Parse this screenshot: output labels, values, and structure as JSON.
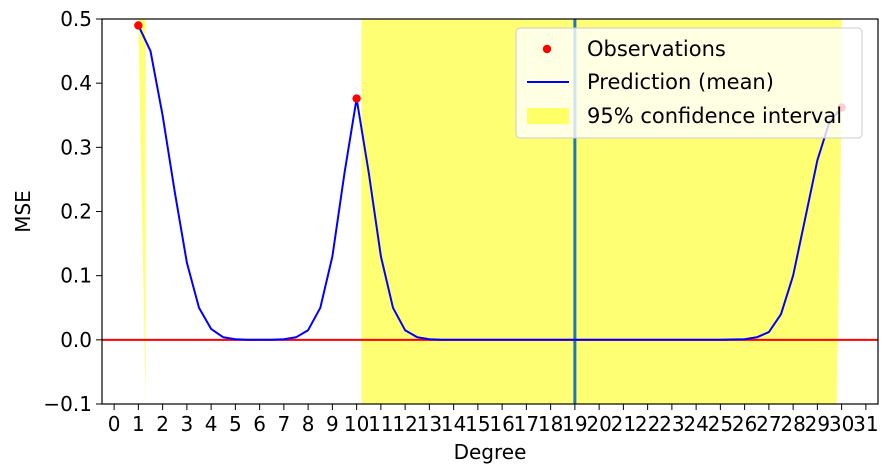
{
  "chart_data": {
    "type": "line",
    "xlabel": "Degree",
    "ylabel": "MSE",
    "xlim": [
      -0.5,
      31.5
    ],
    "ylim": [
      -0.1,
      0.5
    ],
    "x_ticks": [
      0,
      1,
      2,
      3,
      4,
      5,
      6,
      7,
      8,
      9,
      10,
      11,
      12,
      13,
      14,
      15,
      16,
      17,
      18,
      19,
      20,
      21,
      22,
      23,
      24,
      25,
      26,
      27,
      28,
      29,
      30,
      31
    ],
    "y_ticks": [
      {
        "value": -0.1,
        "label": "−0.1"
      },
      {
        "value": 0.0,
        "label": "0.0"
      },
      {
        "value": 0.1,
        "label": "0.1"
      },
      {
        "value": 0.2,
        "label": "0.2"
      },
      {
        "value": 0.3,
        "label": "0.3"
      },
      {
        "value": 0.4,
        "label": "0.4"
      },
      {
        "value": 0.5,
        "label": "0.5"
      }
    ],
    "grid": false,
    "legend_position": "upper-right",
    "series": [
      {
        "name": "Observations",
        "type": "scatter",
        "color": "#ff0000",
        "x": [
          1,
          10,
          30
        ],
        "y": [
          0.49,
          0.376,
          0.362
        ]
      },
      {
        "name": "Prediction (mean)",
        "type": "line",
        "color": "#0000ff",
        "x": [
          1,
          1.5,
          2,
          2.5,
          3,
          3.5,
          4,
          4.5,
          5,
          5.5,
          6,
          6.5,
          7,
          7.5,
          8,
          8.5,
          9,
          9.5,
          10,
          10.5,
          11,
          11.5,
          12,
          12.5,
          13,
          13.5,
          14,
          15,
          16,
          17,
          18,
          19,
          20,
          21,
          22,
          23,
          24,
          25,
          26,
          26.5,
          27,
          27.5,
          28,
          28.5,
          29,
          29.5,
          30
        ],
        "y": [
          0.49,
          0.45,
          0.35,
          0.23,
          0.12,
          0.05,
          0.017,
          0.004,
          0.001,
          0.0,
          0.0,
          0.0,
          0.001,
          0.004,
          0.015,
          0.05,
          0.13,
          0.26,
          0.376,
          0.26,
          0.13,
          0.05,
          0.015,
          0.004,
          0.001,
          0.0,
          0.0,
          0.0,
          0.0,
          0.0,
          0.0,
          0.0,
          0.0,
          0.0,
          0.0,
          0.0,
          0.0,
          0.0,
          0.001,
          0.004,
          0.012,
          0.04,
          0.1,
          0.19,
          0.28,
          0.34,
          0.362
        ]
      },
      {
        "name": "95% confidence interval",
        "type": "band",
        "color": "#ffff00",
        "segments": [
          {
            "x": [
              1,
              1.3
            ],
            "lower": [
              0.49,
              -0.1
            ],
            "upper": [
              0.5,
              0.5
            ]
          },
          {
            "x": [
              10.2,
              19
            ],
            "lower": [
              -0.1,
              -0.1
            ],
            "upper": [
              0.5,
              0.5
            ]
          },
          {
            "x": [
              19,
              29.8
            ],
            "lower": [
              -0.1,
              -0.1
            ],
            "upper": [
              0.5,
              0.5
            ]
          },
          {
            "x": [
              29.8,
              30
            ],
            "lower": [
              -0.1,
              0.362
            ],
            "upper": [
              0.5,
              0.5
            ]
          }
        ]
      }
    ],
    "reference_lines": [
      {
        "orientation": "horizontal",
        "value": 0.0,
        "color": "#ff0000"
      },
      {
        "orientation": "vertical",
        "value": 19,
        "color": "#1f77b4"
      }
    ]
  }
}
